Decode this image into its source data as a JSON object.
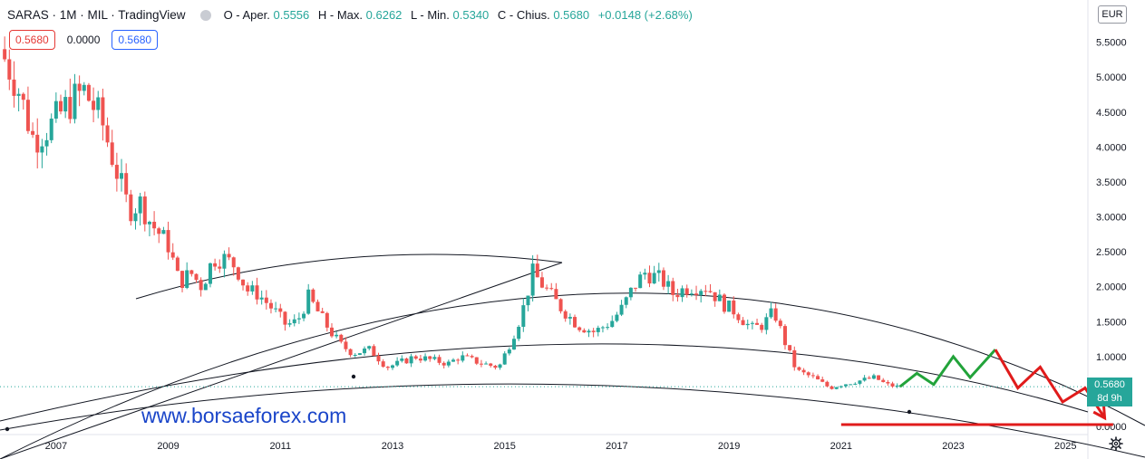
{
  "header": {
    "title": "SARAS · 1M · MIL · TradingView",
    "ohlc": [
      {
        "label": "O - Aper.",
        "value": "0.5556"
      },
      {
        "label": "H - Max.",
        "value": "0.6262"
      },
      {
        "label": "L - Min.",
        "value": "0.5340"
      },
      {
        "label": "C - Chius.",
        "value": "0.5680"
      }
    ],
    "change": "+0.0148 (+2.68%)"
  },
  "price_boxes": {
    "sell": "0.5680",
    "spread": "0.0000",
    "buy": "0.5680"
  },
  "currency": "EUR",
  "last_price": {
    "value": "0.5680",
    "countdown": "8d 9h"
  },
  "watermark": "www.borsaeforex.com",
  "colors": {
    "up": "#26a69a",
    "down": "#ef5350",
    "green_path": "#22a33a",
    "red_path": "#e01b1b",
    "accent": "#2962ff"
  },
  "icons": {
    "visibility": "eye-icon",
    "settings": "gear-icon"
  },
  "chart_data": {
    "type": "candlestick",
    "x_axis": {
      "range": [
        2006.0,
        2025.4
      ],
      "ticks": [
        "2007",
        "2009",
        "2011",
        "2013",
        "2015",
        "2017",
        "2019",
        "2021",
        "2023",
        "2025"
      ],
      "tick_values": [
        2007,
        2009,
        2011,
        2013,
        2015,
        2017,
        2019,
        2021,
        2023,
        2025
      ]
    },
    "y_axis": {
      "range": [
        0.0,
        6.0
      ],
      "ticks": [
        "0.0000",
        "0.5000",
        "1.0000",
        "1.5000",
        "2.0000",
        "2.5000",
        "3.0000",
        "3.5000",
        "4.0000",
        "4.5000",
        "5.0000",
        "5.5000"
      ],
      "tick_values": [
        0.0,
        0.5,
        1.0,
        1.5,
        2.0,
        2.5,
        3.0,
        3.5,
        4.0,
        4.5,
        5.0,
        5.5
      ],
      "side": "right"
    },
    "close_path": [
      [
        2006.0,
        5.4
      ],
      [
        2006.3,
        4.9
      ],
      [
        2006.6,
        4.1
      ],
      [
        2006.9,
        4.3
      ],
      [
        2007.2,
        4.6
      ],
      [
        2007.5,
        4.8
      ],
      [
        2007.8,
        4.4
      ],
      [
        2008.1,
        3.6
      ],
      [
        2008.3,
        3.1
      ],
      [
        2008.5,
        3.2
      ],
      [
        2008.7,
        2.9
      ],
      [
        2009.0,
        2.6
      ],
      [
        2009.2,
        2.05
      ],
      [
        2009.4,
        2.2
      ],
      [
        2009.6,
        2.0
      ],
      [
        2009.8,
        2.4
      ],
      [
        2010.0,
        2.4
      ],
      [
        2010.2,
        2.3
      ],
      [
        2010.4,
        1.95
      ],
      [
        2010.6,
        1.9
      ],
      [
        2010.9,
        1.65
      ],
      [
        2011.1,
        1.45
      ],
      [
        2011.3,
        1.5
      ],
      [
        2011.5,
        1.85
      ],
      [
        2011.7,
        1.6
      ],
      [
        2011.9,
        1.35
      ],
      [
        2012.1,
        1.15
      ],
      [
        2012.3,
        1.05
      ],
      [
        2012.6,
        1.1
      ],
      [
        2012.9,
        0.85
      ],
      [
        2013.1,
        0.9
      ],
      [
        2013.4,
        1.0
      ],
      [
        2013.7,
        0.95
      ],
      [
        2014.0,
        0.9
      ],
      [
        2014.2,
        1.0
      ],
      [
        2014.4,
        0.95
      ],
      [
        2014.7,
        0.88
      ],
      [
        2014.9,
        0.85
      ],
      [
        2015.1,
        1.2
      ],
      [
        2015.3,
        1.6
      ],
      [
        2015.5,
        2.2
      ],
      [
        2015.8,
        1.9
      ],
      [
        2016.0,
        1.7
      ],
      [
        2016.3,
        1.45
      ],
      [
        2016.6,
        1.35
      ],
      [
        2016.9,
        1.5
      ],
      [
        2017.1,
        1.7
      ],
      [
        2017.3,
        2.0
      ],
      [
        2017.5,
        2.2
      ],
      [
        2017.8,
        2.1
      ],
      [
        2018.0,
        1.9
      ],
      [
        2018.3,
        2.0
      ],
      [
        2018.6,
        2.0
      ],
      [
        2018.9,
        1.75
      ],
      [
        2019.1,
        1.65
      ],
      [
        2019.4,
        1.4
      ],
      [
        2019.6,
        1.45
      ],
      [
        2019.8,
        1.65
      ],
      [
        2020.0,
        1.2
      ],
      [
        2020.2,
        0.8
      ],
      [
        2020.5,
        0.7
      ],
      [
        2020.8,
        0.55
      ],
      [
        2021.0,
        0.6
      ],
      [
        2021.3,
        0.65
      ],
      [
        2021.6,
        0.7
      ],
      [
        2021.8,
        0.6
      ],
      [
        2022.0,
        0.568
      ]
    ],
    "projection_green": [
      [
        2022.05,
        0.57
      ],
      [
        2022.35,
        0.76
      ],
      [
        2022.65,
        0.6
      ],
      [
        2023.0,
        1.0
      ],
      [
        2023.3,
        0.7
      ],
      [
        2023.75,
        1.1
      ]
    ],
    "projection_red": [
      [
        2023.75,
        1.1
      ],
      [
        2024.15,
        0.55
      ],
      [
        2024.55,
        0.85
      ],
      [
        2024.95,
        0.35
      ],
      [
        2025.35,
        0.55
      ],
      [
        2025.7,
        0.12
      ]
    ],
    "support_line": {
      "y": 0.0,
      "x_range": [
        2021.0,
        2025.85
      ]
    },
    "last_close": 0.568
  }
}
